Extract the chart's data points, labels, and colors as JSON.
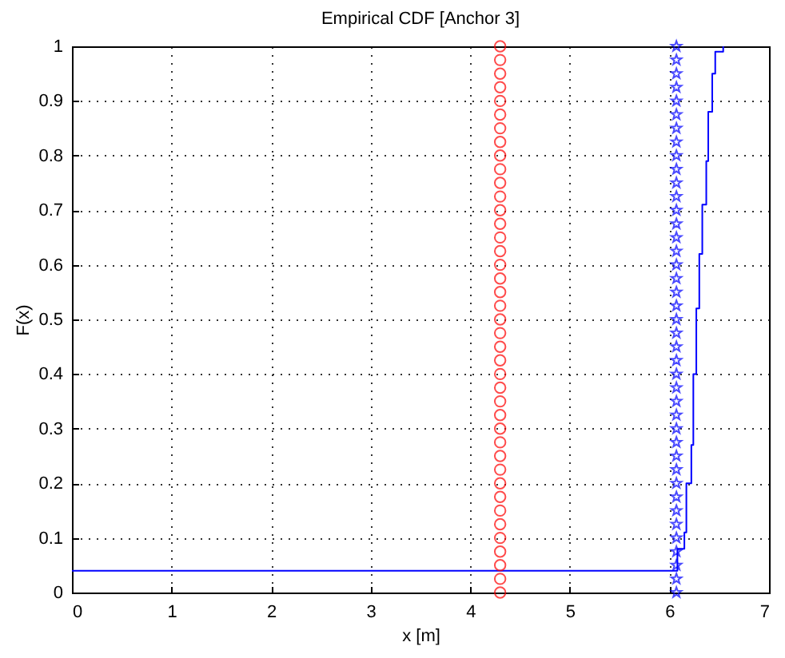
{
  "chart_data": {
    "type": "step",
    "title": "Empirical CDF [Anchor 3]",
    "xlabel": "x [m]",
    "ylabel": "F(x)",
    "xlim": [
      0,
      7
    ],
    "xticks": [
      0,
      1,
      2,
      3,
      4,
      5,
      6,
      7
    ],
    "ylim": [
      0,
      1
    ],
    "yticks": [
      0,
      0.1,
      0.2,
      0.3,
      0.4,
      0.5,
      0.6,
      0.7,
      0.8,
      0.9,
      1
    ],
    "grid": true,
    "series": [
      {
        "color": "#0000ff",
        "marker": "none",
        "x": [
          0,
          6.08,
          6.15,
          6.17,
          6.22,
          6.24,
          6.27,
          6.3,
          6.33,
          6.37,
          6.39,
          6.43,
          6.46,
          6.54
        ],
        "values": [
          0.04,
          0.08,
          0.11,
          0.2,
          0.27,
          0.4,
          0.52,
          0.62,
          0.71,
          0.79,
          0.88,
          0.95,
          0.99,
          1
        ]
      },
      {
        "type": "scatter",
        "color": "#ff0000",
        "marker": "circle",
        "x": [
          4.3,
          4.3,
          4.3,
          4.3,
          4.3,
          4.3,
          4.3,
          4.3,
          4.3,
          4.3,
          4.3,
          4.3,
          4.3,
          4.3,
          4.3,
          4.3,
          4.3,
          4.3,
          4.3,
          4.3,
          4.3,
          4.3,
          4.3,
          4.3,
          4.3,
          4.3,
          4.3,
          4.3,
          4.3,
          4.3,
          4.3,
          4.3,
          4.3,
          4.3,
          4.3,
          4.3,
          4.3,
          4.3,
          4.3,
          4.3,
          4.3
        ],
        "values": [
          0,
          0.025,
          0.05,
          0.075,
          0.1,
          0.125,
          0.15,
          0.175,
          0.2,
          0.225,
          0.25,
          0.275,
          0.3,
          0.325,
          0.35,
          0.375,
          0.4,
          0.425,
          0.45,
          0.475,
          0.5,
          0.525,
          0.55,
          0.575,
          0.6,
          0.625,
          0.65,
          0.675,
          0.7,
          0.725,
          0.75,
          0.775,
          0.8,
          0.825,
          0.85,
          0.875,
          0.9,
          0.925,
          0.95,
          0.975,
          1
        ]
      },
      {
        "type": "scatter",
        "color": "#0000ff",
        "marker": "star",
        "x": [
          6.07,
          6.07,
          6.07,
          6.07,
          6.07,
          6.07,
          6.07,
          6.07,
          6.07,
          6.07,
          6.07,
          6.07,
          6.07,
          6.07,
          6.07,
          6.07,
          6.07,
          6.07,
          6.07,
          6.07,
          6.07,
          6.07,
          6.07,
          6.07,
          6.07,
          6.07,
          6.07,
          6.07,
          6.07,
          6.07,
          6.07,
          6.07,
          6.07,
          6.07,
          6.07,
          6.07,
          6.07,
          6.07,
          6.07,
          6.07,
          6.07
        ],
        "values": [
          0,
          0.025,
          0.05,
          0.075,
          0.1,
          0.125,
          0.15,
          0.175,
          0.2,
          0.225,
          0.25,
          0.275,
          0.3,
          0.325,
          0.35,
          0.375,
          0.4,
          0.425,
          0.45,
          0.475,
          0.5,
          0.525,
          0.55,
          0.575,
          0.6,
          0.625,
          0.65,
          0.675,
          0.7,
          0.725,
          0.75,
          0.775,
          0.8,
          0.825,
          0.85,
          0.875,
          0.9,
          0.925,
          0.95,
          0.975,
          1
        ]
      }
    ]
  }
}
